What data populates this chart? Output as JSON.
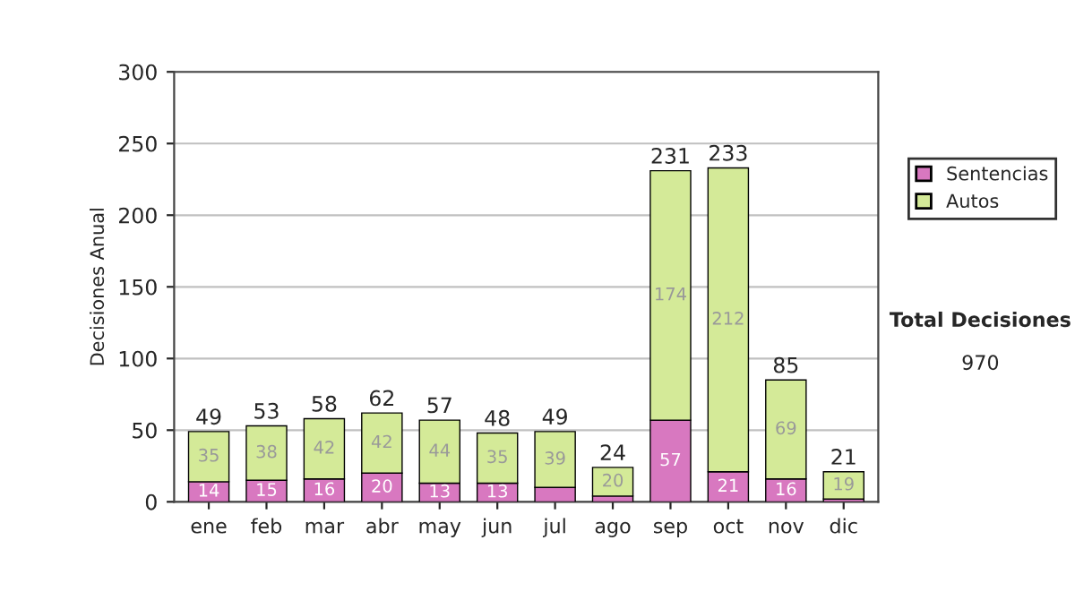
{
  "chart_data": {
    "type": "bar",
    "stacked": true,
    "ylabel": "Decisiones Anual",
    "categories": [
      "ene",
      "feb",
      "mar",
      "abr",
      "may",
      "jun",
      "jul",
      "ago",
      "sep",
      "oct",
      "nov",
      "dic"
    ],
    "series": [
      {
        "name": "Sentencias",
        "color": "#d878c0",
        "values": [
          14,
          15,
          16,
          20,
          13,
          13,
          10,
          4,
          57,
          21,
          16,
          2
        ],
        "value_labels": [
          "14",
          "15",
          "16",
          "20",
          "13",
          "13",
          null,
          null,
          "57",
          "21",
          "16",
          null
        ]
      },
      {
        "name": "Autos",
        "color": "#d4ea98",
        "values": [
          35,
          38,
          42,
          42,
          44,
          35,
          39,
          20,
          174,
          212,
          69,
          19
        ],
        "value_labels": [
          "35",
          "38",
          "42",
          "42",
          "44",
          "35",
          "39",
          "20",
          "174",
          "212",
          "69",
          "19"
        ]
      }
    ],
    "totals": [
      "49",
      "53",
      "58",
      "62",
      "57",
      "48",
      "49",
      "24",
      "231",
      "233",
      "85",
      "21"
    ],
    "ylim": [
      0,
      300
    ],
    "yticks": [
      0,
      50,
      100,
      150,
      200,
      250,
      300
    ],
    "grid": "y",
    "legend": "right",
    "annotations": [
      "Total Decisiones",
      "970"
    ]
  }
}
